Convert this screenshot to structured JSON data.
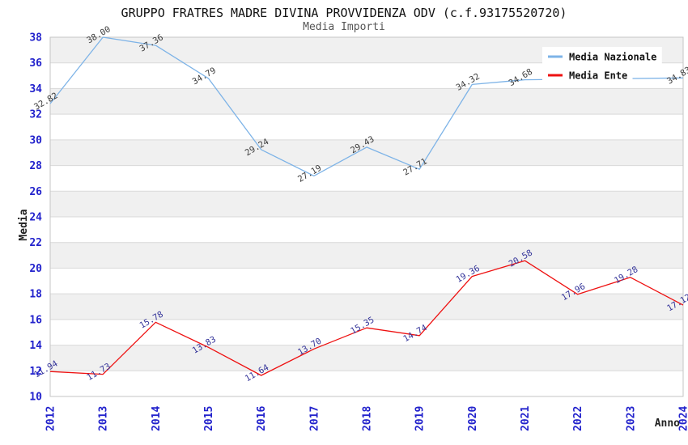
{
  "page": {
    "background": "#ffffff"
  },
  "chart_data": {
    "type": "line",
    "title": "GRUPPO FRATRES MADRE DIVINA PROVVIDENZA ODV (c.f.93175520720)",
    "subtitle": "Media Importi",
    "xlabel": "Anno",
    "ylabel": "Media",
    "x": [
      2012,
      2013,
      2014,
      2015,
      2016,
      2017,
      2018,
      2019,
      2020,
      2021,
      2022,
      2023,
      2024
    ],
    "yticks": [
      10,
      12,
      14,
      16,
      18,
      20,
      22,
      24,
      26,
      28,
      30,
      32,
      34,
      36,
      38
    ],
    "ylim": [
      10,
      38
    ],
    "grid": true,
    "plot_background": "alternating-horizontal-bands",
    "legend_position": "top-right",
    "legend_entries": [
      "Media Nazionale",
      "Media Ente"
    ],
    "series": [
      {
        "name": "Media Nazionale",
        "color": "#7db3e7",
        "label_color": "#3c3c3c",
        "values": [
          32.82,
          38.0,
          37.36,
          34.79,
          29.24,
          27.19,
          29.43,
          27.71,
          34.32,
          34.68,
          null,
          null,
          34.83
        ]
      },
      {
        "name": "Media Ente",
        "color": "#ee1111",
        "label_color": "#333399",
        "values": [
          11.94,
          11.73,
          15.78,
          13.83,
          11.64,
          13.7,
          15.35,
          14.74,
          19.36,
          20.58,
          17.96,
          19.28,
          17.12
        ]
      }
    ],
    "colors": {
      "axis_tick_labels": "#2222cc",
      "axis_titles": "#222222",
      "title": "#111111",
      "subtitle": "#555555",
      "band": "#f0f0f0",
      "gridline": "#d9d9d9",
      "plot_border": "#c6c6c6",
      "legend_background": "#ffffff",
      "legend_text": "#111111"
    }
  }
}
